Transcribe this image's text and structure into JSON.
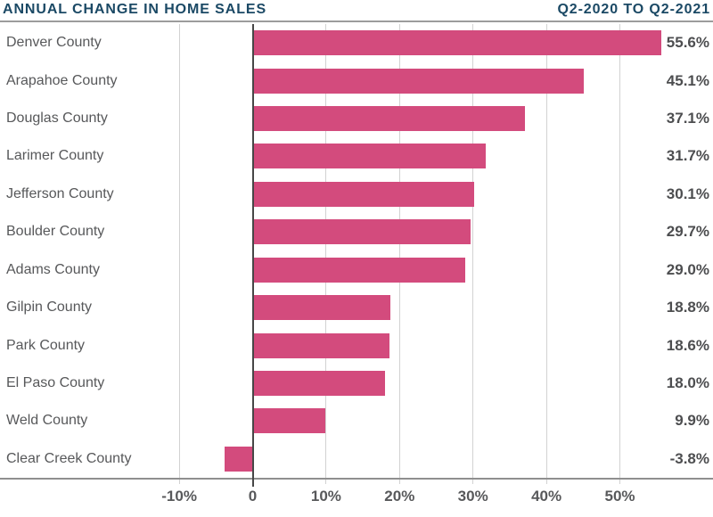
{
  "header": {
    "title": "ANNUAL CHANGE IN HOME SALES",
    "subtitle": "Q2-2020 TO Q2-2021"
  },
  "colors": {
    "title_navy": "#1b4965",
    "bar_pink": "#d34b7d",
    "category_label": "#57585a",
    "value_label": "#4d4e50",
    "tick_label": "#58595b",
    "gridline": "#d2d2d2",
    "zero_line": "#474747",
    "baseline": "#8f8f8f",
    "header_rule": "#9c9c9c",
    "background": "#ffffff"
  },
  "chart_data": {
    "type": "bar",
    "orientation": "horizontal",
    "title": "ANNUAL CHANGE IN HOME SALES",
    "subtitle": "Q2-2020 TO Q2-2021",
    "categories": [
      "Denver County",
      "Arapahoe County",
      "Douglas County",
      "Larimer County",
      "Jefferson County",
      "Boulder County",
      "Adams County",
      "Gilpin County",
      "Park County",
      "El Paso County",
      "Weld County",
      "Clear Creek County"
    ],
    "values": [
      55.6,
      45.1,
      37.1,
      31.7,
      30.1,
      29.7,
      29.0,
      18.8,
      18.6,
      18.0,
      9.9,
      -3.8
    ],
    "value_labels": [
      "55.6%",
      "45.1%",
      "37.1%",
      "31.7%",
      "30.1%",
      "29.7%",
      "29.0%",
      "18.8%",
      "18.6%",
      "18.0%",
      "9.9%",
      "-3.8%"
    ],
    "x_ticks": [
      {
        "value": -10,
        "label": "-10%"
      },
      {
        "value": 0,
        "label": "0"
      },
      {
        "value": 10,
        "label": "10%"
      },
      {
        "value": 20,
        "label": "20%"
      },
      {
        "value": 30,
        "label": "30%"
      },
      {
        "value": 40,
        "label": "40%"
      },
      {
        "value": 50,
        "label": "50%"
      }
    ],
    "xlabel": "",
    "ylabel": "",
    "grid": true,
    "legend": false,
    "value_label_position": "right-edge"
  }
}
